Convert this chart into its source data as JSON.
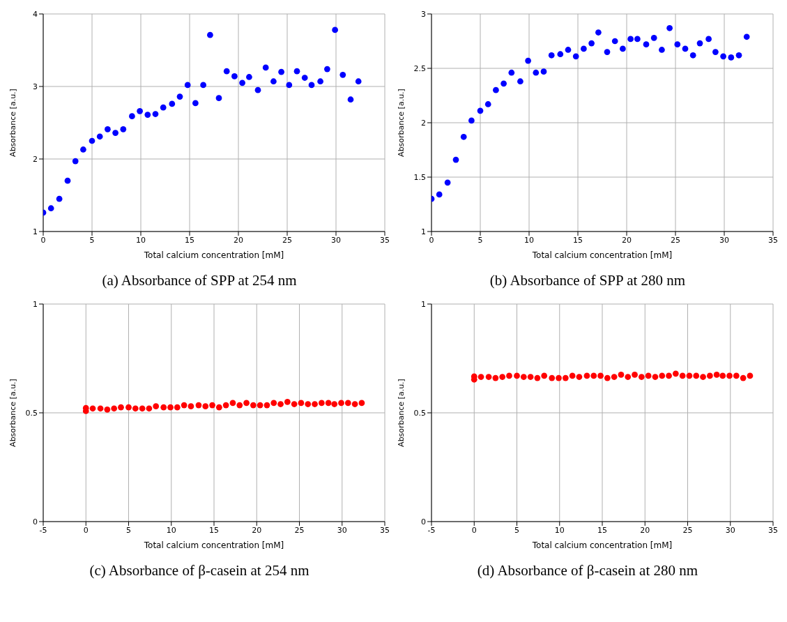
{
  "chart_data": [
    {
      "type": "scatter",
      "title": "(a) Absorbance of SPP at 254 nm",
      "xlabel": "Total calcium concentration [mM]",
      "ylabel": "Absorbance [a.u.]",
      "xlim": [
        0,
        35
      ],
      "xticks": [
        0,
        5,
        10,
        15,
        20,
        25,
        30,
        35
      ],
      "ylim": [
        1,
        4
      ],
      "yticks": [
        1,
        2,
        3,
        4
      ],
      "grid": true,
      "marker": "circle",
      "x": [
        0,
        0.8,
        1.65,
        2.5,
        3.3,
        4.1,
        5.0,
        5.8,
        6.6,
        7.4,
        8.2,
        9.1,
        9.9,
        10.7,
        11.5,
        12.3,
        13.2,
        14.0,
        14.8,
        15.6,
        16.4,
        17.1,
        18.0,
        18.8,
        19.6,
        20.4,
        21.1,
        22.0,
        22.8,
        23.6,
        24.4,
        25.2,
        26.0,
        26.8,
        27.5,
        28.4,
        29.1,
        29.9,
        30.7,
        31.5,
        32.3
      ],
      "series": [
        {
          "color": "#0000ff",
          "values": [
            1.26,
            1.32,
            1.45,
            1.7,
            1.97,
            2.13,
            2.25,
            2.31,
            2.41,
            2.36,
            2.41,
            2.59,
            2.66,
            2.61,
            2.62,
            2.71,
            2.76,
            2.86,
            3.02,
            2.77,
            3.02,
            3.71,
            2.84,
            3.21,
            3.14,
            3.05,
            3.13,
            2.95,
            3.26,
            3.07,
            3.2,
            3.02,
            3.21,
            3.12,
            3.02,
            3.07,
            3.24,
            3.78,
            3.16,
            2.82,
            3.07
          ]
        }
      ]
    },
    {
      "type": "scatter",
      "title": "(b) Absorbance of SPP at 280 nm",
      "xlabel": "Total calcium concentration [mM]",
      "ylabel": "Absorbance [a.u.]",
      "xlim": [
        0,
        35
      ],
      "xticks": [
        0,
        5,
        10,
        15,
        20,
        25,
        30,
        35
      ],
      "ylim": [
        1,
        3
      ],
      "yticks": [
        1,
        1.5,
        2,
        2.5,
        3
      ],
      "grid": true,
      "marker": "circle",
      "x": [
        0,
        0.8,
        1.65,
        2.5,
        3.3,
        4.1,
        5.0,
        5.8,
        6.6,
        7.4,
        8.2,
        9.1,
        9.9,
        10.7,
        11.5,
        12.3,
        13.2,
        14.0,
        14.8,
        15.6,
        16.4,
        17.1,
        18.0,
        18.8,
        19.6,
        20.4,
        21.1,
        22.0,
        22.8,
        23.6,
        24.4,
        25.2,
        26.0,
        26.8,
        27.5,
        28.4,
        29.1,
        29.9,
        30.7,
        31.5,
        32.3
      ],
      "series": [
        {
          "color": "#0000ff",
          "values": [
            1.3,
            1.34,
            1.45,
            1.66,
            1.87,
            2.02,
            2.11,
            2.17,
            2.3,
            2.36,
            2.46,
            2.38,
            2.57,
            2.46,
            2.47,
            2.62,
            2.63,
            2.67,
            2.61,
            2.68,
            2.73,
            2.83,
            2.65,
            2.75,
            2.68,
            2.77,
            2.77,
            2.72,
            2.78,
            2.67,
            2.87,
            2.72,
            2.68,
            2.62,
            2.73,
            2.77,
            2.65,
            2.61,
            2.6,
            2.62,
            2.79
          ]
        }
      ]
    },
    {
      "type": "scatter",
      "title": "(c) Absorbance of β-casein at 254 nm",
      "xlabel": "Total calcium concentration [mM]",
      "ylabel": "Absorbance [a.u.]",
      "xlim": [
        -5,
        35
      ],
      "xticks": [
        -5,
        0,
        5,
        10,
        15,
        20,
        25,
        30,
        35
      ],
      "ylim": [
        0,
        1
      ],
      "yticks": [
        0,
        0.5,
        1
      ],
      "grid": true,
      "marker": "circle",
      "x": [
        0,
        0,
        0.8,
        1.7,
        2.5,
        3.3,
        4.1,
        5.0,
        5.8,
        6.6,
        7.4,
        8.2,
        9.1,
        9.9,
        10.7,
        11.5,
        12.3,
        13.2,
        14.0,
        14.8,
        15.6,
        16.4,
        17.2,
        18.0,
        18.8,
        19.6,
        20.4,
        21.2,
        22.0,
        22.8,
        23.6,
        24.4,
        25.2,
        26.0,
        26.8,
        27.6,
        28.4,
        29.1,
        29.9,
        30.7,
        31.5,
        32.3
      ],
      "series": [
        {
          "color": "#ff0000",
          "values": [
            0.522,
            0.508,
            0.52,
            0.52,
            0.515,
            0.52,
            0.525,
            0.525,
            0.52,
            0.52,
            0.52,
            0.53,
            0.525,
            0.525,
            0.525,
            0.535,
            0.53,
            0.535,
            0.53,
            0.535,
            0.525,
            0.535,
            0.545,
            0.535,
            0.545,
            0.535,
            0.535,
            0.535,
            0.545,
            0.54,
            0.55,
            0.54,
            0.545,
            0.54,
            0.54,
            0.545,
            0.545,
            0.54,
            0.545,
            0.545,
            0.54,
            0.545
          ]
        }
      ]
    },
    {
      "type": "scatter",
      "title": "(d) Absorbance of β-casein at 280 nm",
      "xlabel": "Total calcium concentration [mM]",
      "ylabel": "Absorbance [a.u.]",
      "xlim": [
        -5,
        35
      ],
      "xticks": [
        -5,
        0,
        5,
        10,
        15,
        20,
        25,
        30,
        35
      ],
      "ylim": [
        0,
        1
      ],
      "yticks": [
        0,
        0.5,
        1
      ],
      "grid": true,
      "marker": "circle",
      "x": [
        0,
        0,
        0.8,
        1.7,
        2.5,
        3.3,
        4.1,
        5.0,
        5.8,
        6.6,
        7.4,
        8.2,
        9.1,
        9.9,
        10.7,
        11.5,
        12.3,
        13.2,
        14.0,
        14.8,
        15.6,
        16.4,
        17.2,
        18.0,
        18.8,
        19.6,
        20.4,
        21.2,
        22.0,
        22.8,
        23.6,
        24.4,
        25.2,
        26.0,
        26.8,
        27.6,
        28.4,
        29.1,
        29.9,
        30.7,
        31.5,
        32.3
      ],
      "series": [
        {
          "color": "#ff0000",
          "values": [
            0.667,
            0.653,
            0.665,
            0.665,
            0.66,
            0.665,
            0.67,
            0.67,
            0.665,
            0.665,
            0.66,
            0.67,
            0.66,
            0.66,
            0.66,
            0.67,
            0.665,
            0.67,
            0.67,
            0.67,
            0.66,
            0.665,
            0.675,
            0.665,
            0.675,
            0.665,
            0.67,
            0.665,
            0.67,
            0.67,
            0.68,
            0.67,
            0.67,
            0.67,
            0.665,
            0.67,
            0.675,
            0.67,
            0.67,
            0.67,
            0.66,
            0.67
          ]
        }
      ]
    }
  ]
}
